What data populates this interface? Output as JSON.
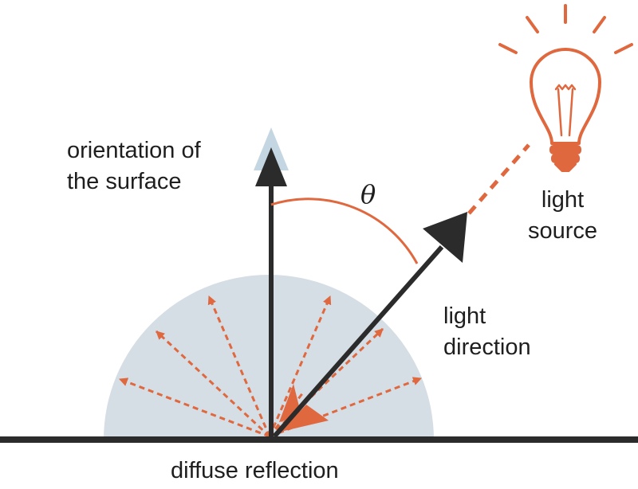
{
  "labels": {
    "orientation_line1": "orientation of",
    "orientation_line2": "the surface",
    "theta": "θ",
    "light_source_line1": "light",
    "light_source_line2": "source",
    "light_direction_line1": "light",
    "light_direction_line2": "direction",
    "diffuse_reflection": "diffuse reflection"
  },
  "colors": {
    "accent_orange": "#e0683f",
    "hemisphere_fill": "#d5dde5",
    "normal_glow": "#c4d6e2",
    "dark": "#2b2b2b",
    "text": "#1e1e1e"
  },
  "icons": {
    "light_source": "light-bulb-icon"
  },
  "angle_theta_degrees": 45,
  "diffuse_ray_count": 8
}
